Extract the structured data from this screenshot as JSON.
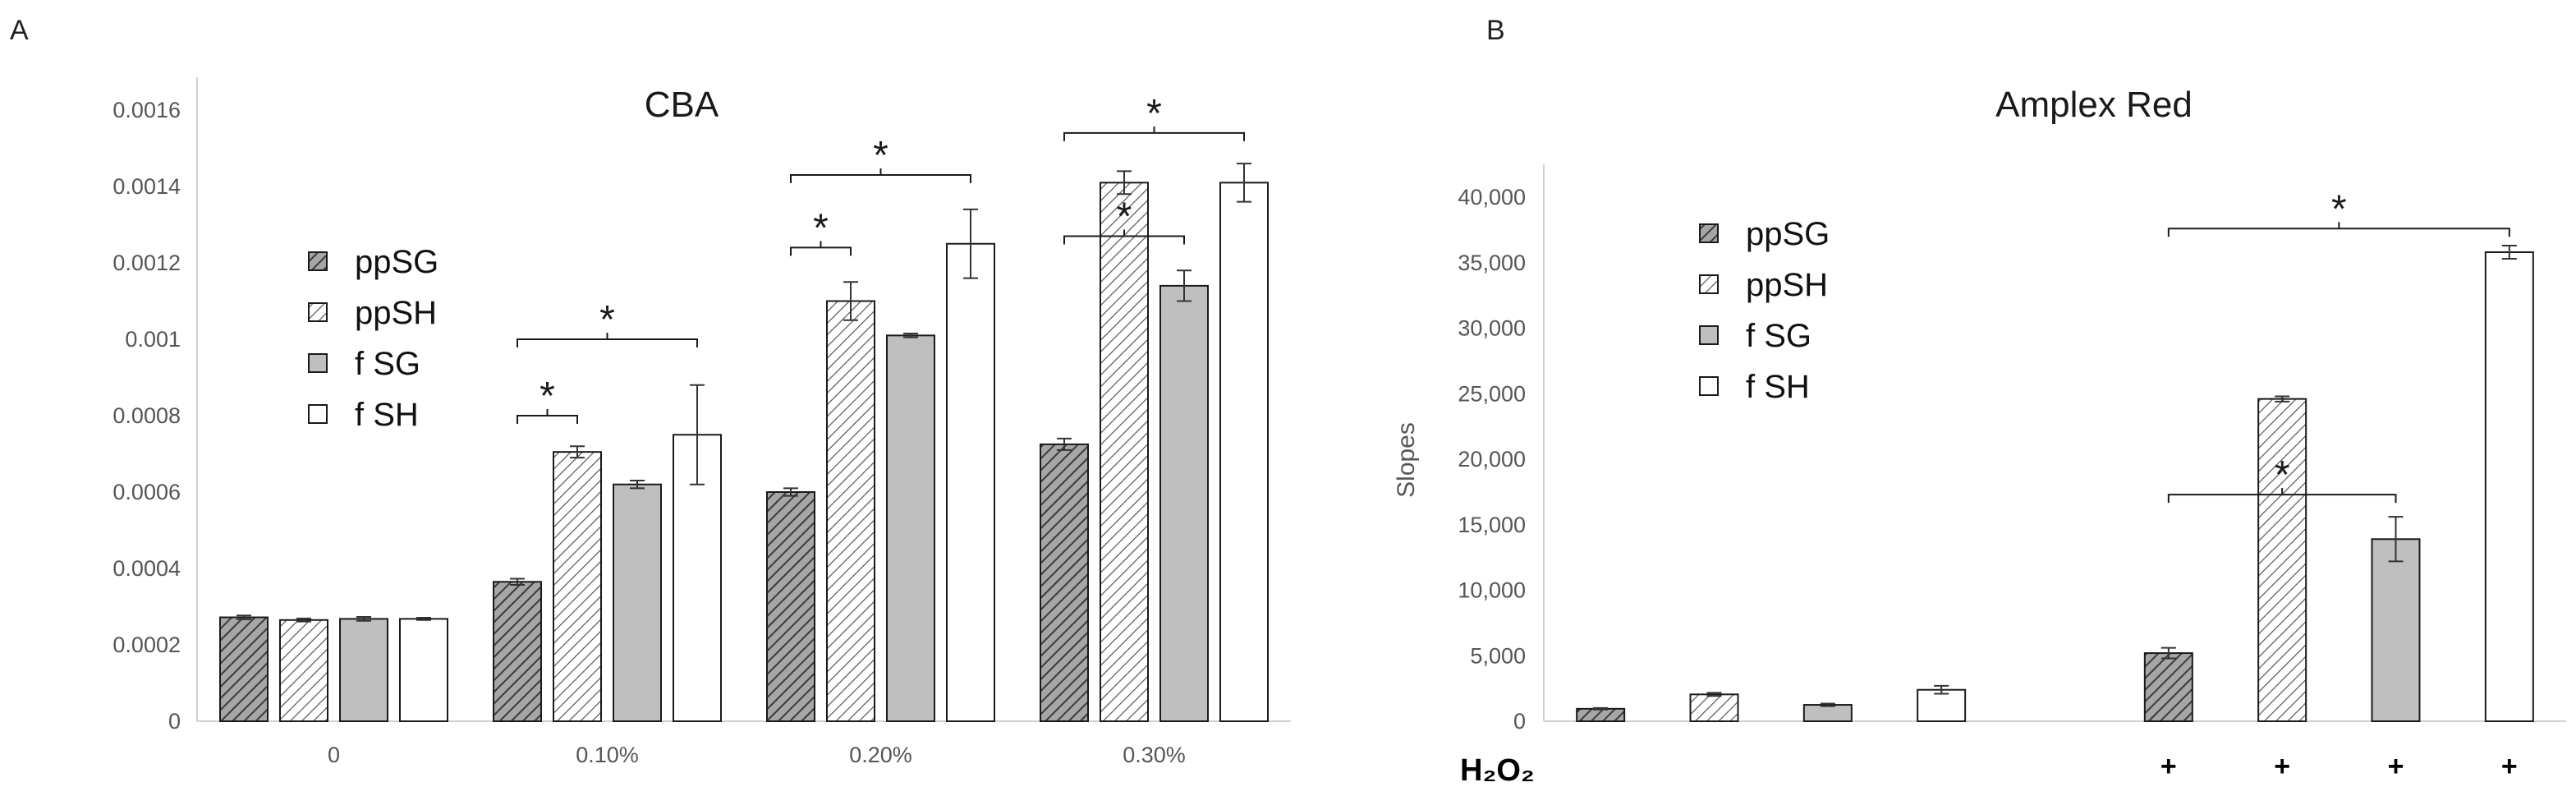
{
  "panel_labels": {
    "a": "A",
    "b": "B"
  },
  "colors": {
    "ppSG_fill": "#a6a6a6",
    "ppSG_hatch": "#3a3a3a",
    "ppSH_fill": "#ffffff",
    "ppSH_hatch": "#555555",
    "fSG_fill": "#bfbfbf",
    "fSH_fill": "#ffffff",
    "bar_stroke": "#1a1a1a",
    "axis": "#d0d0d0",
    "bracket": "#1a1a1a"
  },
  "chart_data": [
    {
      "id": "cba",
      "type": "bar",
      "title": "CBA",
      "xlabel": "",
      "ylabel": "",
      "ylim": [
        0,
        0.0016
      ],
      "yticks": [
        0,
        0.0002,
        0.0004,
        0.0006,
        0.0008,
        0.001,
        0.0012,
        0.0014,
        0.0016
      ],
      "ytick_labels": [
        "0",
        "0.0002",
        "0.0004",
        "0.0006",
        "0.0008",
        "0.001",
        "0.0012",
        "0.0014",
        "0.0016"
      ],
      "grid": false,
      "legend_position": "upper-left",
      "categories": [
        "0",
        "0.10%",
        "0.20%",
        "0.30%"
      ],
      "series": [
        {
          "name": "ppSG",
          "style": "ppSG",
          "values": [
            0.000272,
            0.000365,
            0.0006,
            0.000725
          ],
          "errors": [
            5e-06,
            8e-06,
            1e-05,
            1.5e-05
          ]
        },
        {
          "name": "ppSH",
          "style": "ppSH",
          "values": [
            0.000265,
            0.000705,
            0.0011,
            0.00141
          ],
          "errors": [
            4e-06,
            1.5e-05,
            5e-05,
            3e-05
          ]
        },
        {
          "name": "f SG",
          "style": "fSG",
          "values": [
            0.000268,
            0.00062,
            0.00101,
            0.00114
          ],
          "errors": [
            5e-06,
            1e-05,
            5e-06,
            4e-05
          ]
        },
        {
          "name": "f SH",
          "style": "fSH",
          "values": [
            0.000268,
            0.00075,
            0.00125,
            0.00141
          ],
          "errors": [
            3e-06,
            0.00013,
            9e-05,
            5e-05
          ]
        }
      ],
      "significance": [
        {
          "from": [
            1,
            0
          ],
          "to": [
            1,
            1
          ],
          "y": 0.0008,
          "label": "*"
        },
        {
          "from": [
            1,
            0
          ],
          "to": [
            1,
            3
          ],
          "y": 0.001,
          "label": "*"
        },
        {
          "from": [
            2,
            0
          ],
          "to": [
            2,
            1
          ],
          "y": 0.00124,
          "label": "*"
        },
        {
          "from": [
            2,
            0
          ],
          "to": [
            2,
            3
          ],
          "y": 0.00143,
          "label": "*"
        },
        {
          "from": [
            3,
            0
          ],
          "to": [
            3,
            2
          ],
          "y": 0.00127,
          "label": "*"
        },
        {
          "from": [
            3,
            0
          ],
          "to": [
            3,
            3
          ],
          "y": 0.00154,
          "label": "*"
        }
      ]
    },
    {
      "id": "amplex",
      "type": "bar",
      "title": "Amplex Red",
      "xlabel": "",
      "ylabel": "Slopes",
      "ylim": [
        0,
        40000
      ],
      "yticks": [
        0,
        5000,
        10000,
        15000,
        20000,
        25000,
        30000,
        35000,
        40000
      ],
      "ytick_labels": [
        "0",
        "5,000",
        "10,000",
        "15,000",
        "20,000",
        "25,000",
        "30,000",
        "35,000",
        "40,000"
      ],
      "grid": false,
      "legend_position": "upper-left",
      "row_label": "H₂O₂",
      "slots": [
        "",
        "",
        "",
        "",
        "",
        "+",
        "+",
        "+",
        "+"
      ],
      "bars": [
        {
          "name": "ppSG",
          "style": "ppSG",
          "slot": 0,
          "value": 950,
          "error": 60
        },
        {
          "name": "ppSH",
          "style": "ppSH",
          "slot": 1,
          "value": 2050,
          "error": 120
        },
        {
          "name": "f SG",
          "style": "fSG",
          "slot": 2,
          "value": 1250,
          "error": 100
        },
        {
          "name": "f SH",
          "style": "fSH",
          "slot": 3,
          "value": 2400,
          "error": 300
        },
        {
          "name": "ppSG",
          "style": "ppSG",
          "slot": 5,
          "value": 5200,
          "error": 400
        },
        {
          "name": "ppSH",
          "style": "ppSH",
          "slot": 6,
          "value": 24600,
          "error": 200
        },
        {
          "name": "f SG",
          "style": "fSG",
          "slot": 7,
          "value": 13900,
          "error": 1700
        },
        {
          "name": "f SH",
          "style": "fSH",
          "slot": 8,
          "value": 35800,
          "error": 500
        }
      ],
      "significance": [
        {
          "from_slot": 5,
          "to_slot": 7,
          "y": 17300,
          "label": "*"
        },
        {
          "from_slot": 5,
          "to_slot": 8,
          "y": 37600,
          "label": "*"
        }
      ],
      "legend": [
        {
          "name": "ppSG",
          "style": "ppSG"
        },
        {
          "name": "ppSH",
          "style": "ppSH"
        },
        {
          "name": "f SG",
          "style": "fSG"
        },
        {
          "name": "f SH",
          "style": "fSH"
        }
      ]
    }
  ]
}
